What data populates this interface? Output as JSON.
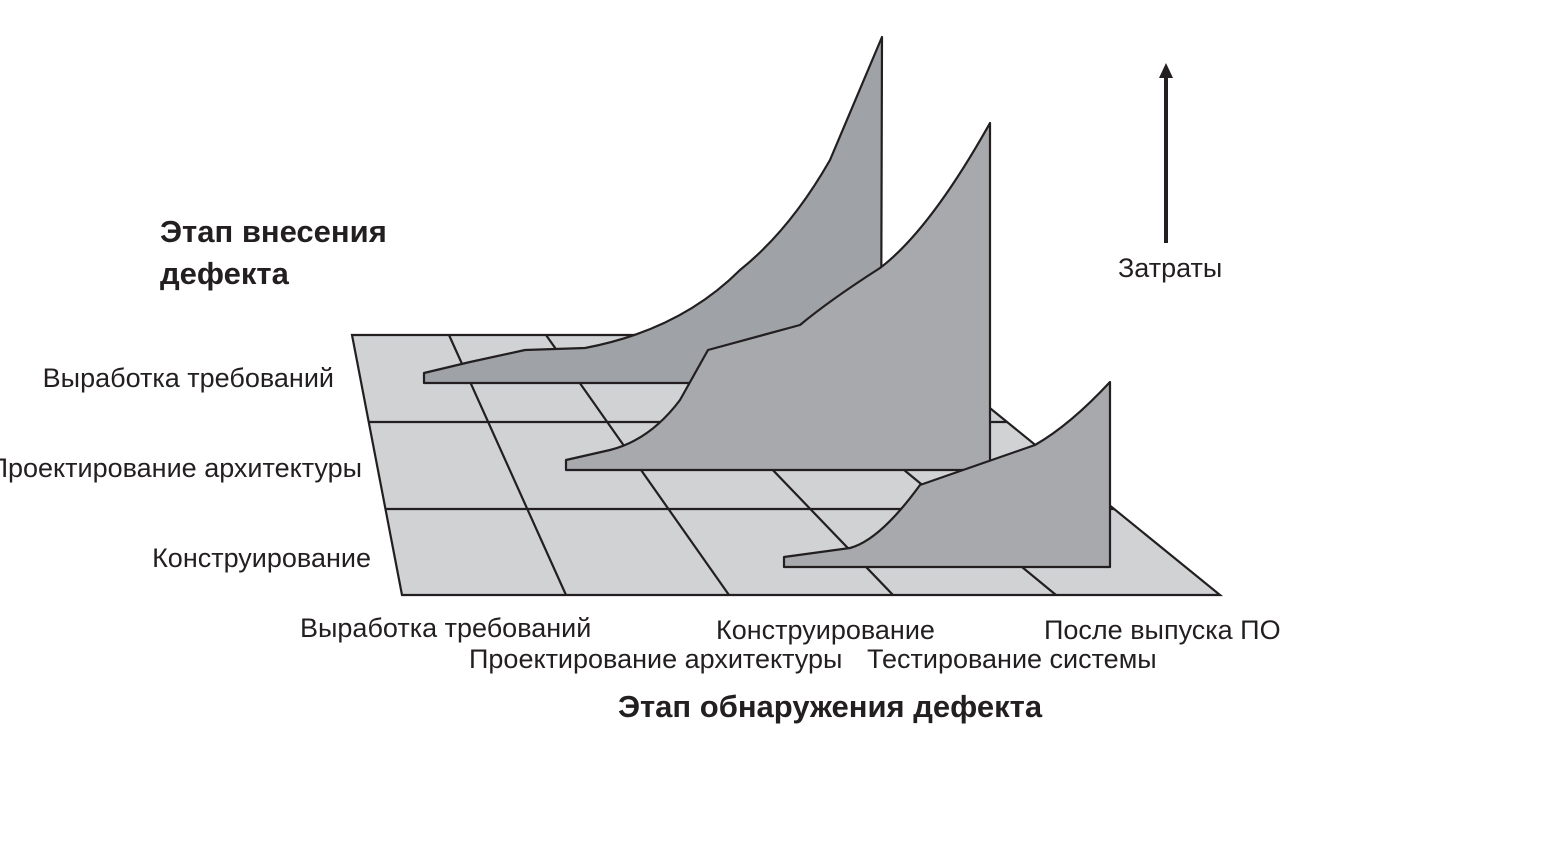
{
  "diagram": {
    "introduction_axis": {
      "title_lines": [
        "Этап внесения",
        "дефекта"
      ],
      "stages": [
        "Выработка требований",
        "Проектирование архитектуры",
        "Конструирование"
      ]
    },
    "detection_axis": {
      "title": "Этап обнаружения дефекта",
      "stages": [
        "Выработка требований",
        "Проектирование архитектуры",
        "Конструирование",
        "Тестирование системы",
        "После выпуска ПО"
      ]
    },
    "cost_axis": {
      "label": "Затраты"
    },
    "colors": {
      "floor": "#d1d2d4",
      "surface_back": "#9fa2a6",
      "surface_middle": "#a7a9ac",
      "surface_front": "#a7a9ac",
      "outline": "#231f20"
    }
  }
}
